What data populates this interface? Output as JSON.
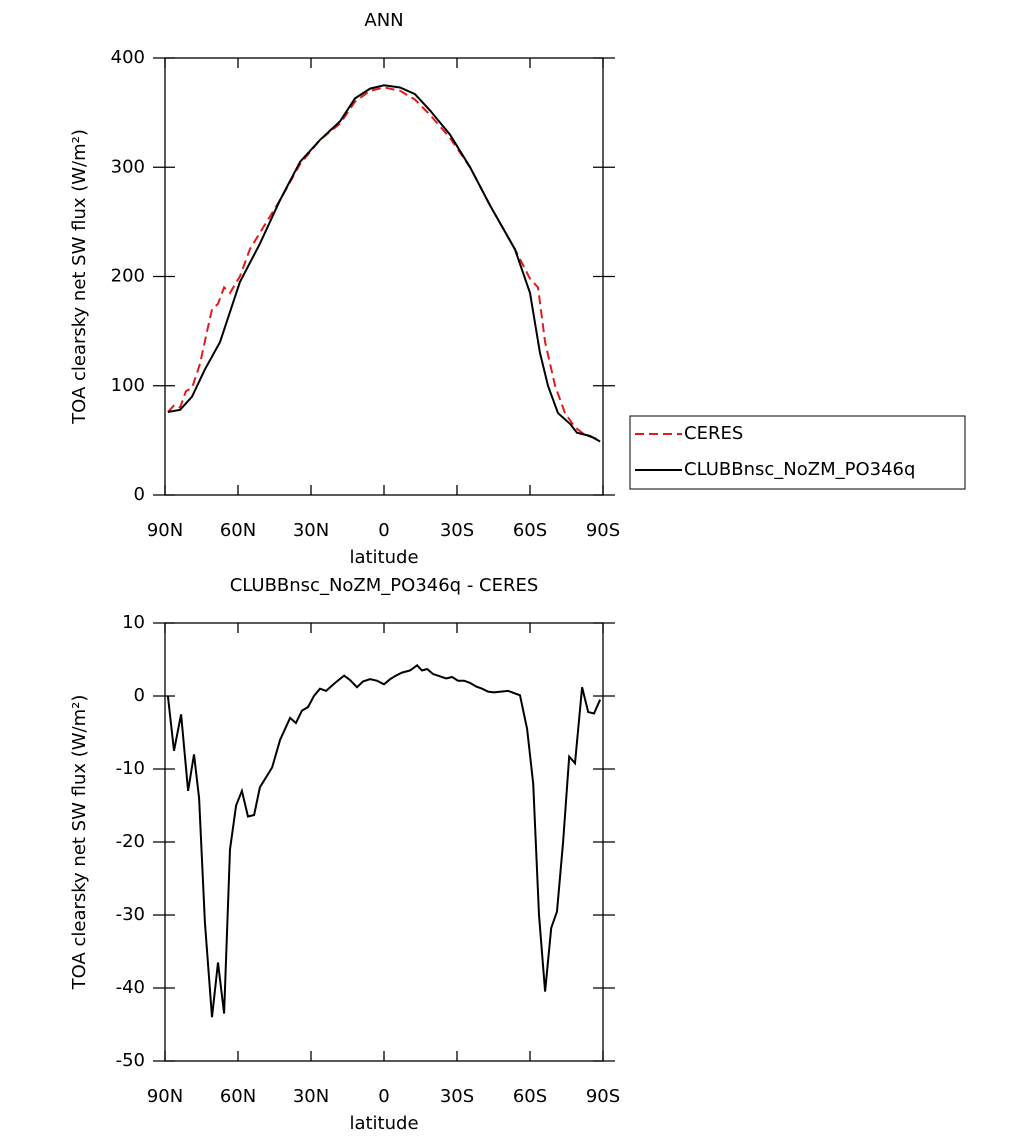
{
  "chart_data": [
    {
      "type": "line",
      "title": "ANN",
      "x_label": "latitude",
      "y_label": "TOA clearsky net SW flux (W/m²)",
      "xlim": [
        90,
        -90
      ],
      "ylim": [
        0,
        400
      ],
      "xticks": [
        {
          "value": 90,
          "label": "90N"
        },
        {
          "value": 60,
          "label": "60N"
        },
        {
          "value": 30,
          "label": "30N"
        },
        0,
        {
          "value": -30,
          "label": "30S"
        },
        {
          "value": -60,
          "label": "60S"
        },
        {
          "value": -90,
          "label": "90S"
        }
      ],
      "yticks": [
        0,
        100,
        200,
        300,
        400
      ],
      "legend": "right",
      "series": [
        {
          "name": "CERES",
          "color": "#e31a1c",
          "dash": "dashed",
          "x": [
            88.8,
            86.3,
            83.8,
            81.4,
            78.9,
            75.6,
            72.7,
            70.7,
            68.2,
            65.7,
            63.3,
            59.2,
            55.1,
            51.0,
            42.7,
            34.5,
            26.3,
            18.1,
            11.9,
            5.7,
            0,
            -6.6,
            -12.7,
            -18.9,
            -27.1,
            -35.4,
            -43.6,
            -53.8,
            -60.0,
            -63.3,
            -66.2,
            -70.3,
            -74.4,
            -78.5,
            -82.6,
            -86.7,
            -88.8
          ],
          "values": [
            76,
            82,
            80,
            95,
            98,
            120,
            150,
            170,
            175,
            190,
            185,
            200,
            225,
            240,
            270,
            303,
            325,
            340,
            360,
            370,
            373,
            370,
            362,
            348,
            327,
            300,
            265,
            225,
            198,
            190,
            140,
            100,
            75,
            62,
            55,
            52,
            50
          ]
        },
        {
          "name": "CLUBBnsc_NoZM_PO346q",
          "color": "#000000",
          "dash": "solid",
          "x": [
            88.8,
            83.8,
            78.9,
            73.6,
            67.4,
            59.2,
            51.0,
            42.7,
            34.5,
            26.3,
            18.1,
            11.9,
            5.7,
            0,
            -6.6,
            -12.7,
            -18.9,
            -27.1,
            -35.4,
            -43.6,
            -53.8,
            -60.0,
            -64.1,
            -67.4,
            -71.5,
            -76.5,
            -79.3,
            -84.7,
            -88.8
          ],
          "values": [
            76,
            78,
            90,
            115,
            140,
            195,
            230,
            270,
            305,
            325,
            342,
            363,
            372,
            375,
            373,
            367,
            352,
            330,
            300,
            265,
            225,
            185,
            130,
            100,
            75,
            65,
            57,
            54,
            49
          ]
        }
      ]
    },
    {
      "type": "line",
      "title": "CLUBBnsc_NoZM_PO346q - CERES",
      "x_label": "latitude",
      "y_label": "TOA clearsky net SW flux (W/m²)",
      "xlim": [
        90,
        -90
      ],
      "ylim": [
        -50,
        10
      ],
      "xticks": [
        {
          "value": 90,
          "label": "90N"
        },
        {
          "value": 60,
          "label": "60N"
        },
        {
          "value": 30,
          "label": "30N"
        },
        0,
        {
          "value": -30,
          "label": "30S"
        },
        {
          "value": -60,
          "label": "60S"
        },
        {
          "value": -90,
          "label": "90S"
        }
      ],
      "yticks": [
        -50,
        -40,
        -30,
        -20,
        -10,
        0,
        10
      ],
      "series": [
        {
          "color": "#000000",
          "dash": "solid",
          "x": [
            88.8,
            86.3,
            83.4,
            80.5,
            78.1,
            76.0,
            73.6,
            70.7,
            68.2,
            65.7,
            63.3,
            60.8,
            58.4,
            55.9,
            53.4,
            51.0,
            46.0,
            42.7,
            38.6,
            36.2,
            33.7,
            31.2,
            28.8,
            26.3,
            23.8,
            20.1,
            16.4,
            14.0,
            11.1,
            8.6,
            5.7,
            2.9,
            0.0,
            -2.5,
            -4.9,
            -7.4,
            -10.7,
            -13.6,
            -15.6,
            -17.7,
            -20.2,
            -23.0,
            -25.5,
            -28.0,
            -30.4,
            -32.9,
            -35.4,
            -37.8,
            -40.3,
            -42.8,
            -45.2,
            -51.0,
            -55.9,
            -58.8,
            -61.3,
            -63.7,
            -66.2,
            -68.7,
            -71.1,
            -73.6,
            -76.1,
            -78.5,
            -81.4,
            -83.9,
            -86.3,
            -88.8
          ],
          "values": [
            0,
            -7.5,
            -2.5,
            -13,
            -8,
            -14,
            -31,
            -44,
            -36.5,
            -43.5,
            -21,
            -15,
            -13,
            -16.5,
            -16.3,
            -12.5,
            -9.8,
            -6,
            -3,
            -3.7,
            -2,
            -1.5,
            0,
            1,
            0.7,
            1.8,
            2.8,
            2.2,
            1.2,
            2,
            2.3,
            2.1,
            1.6,
            2.3,
            2.8,
            3.2,
            3.5,
            4.2,
            3.5,
            3.7,
            3,
            2.7,
            2.4,
            2.6,
            2.1,
            2.1,
            1.8,
            1.3,
            1,
            0.6,
            0.5,
            0.7,
            0.1,
            -4.5,
            -12,
            -30,
            -40.5,
            -31.8,
            -29.5,
            -20,
            -8.3,
            -9.2,
            1.2,
            -2.2,
            -2.4,
            -0.5
          ]
        }
      ]
    }
  ]
}
